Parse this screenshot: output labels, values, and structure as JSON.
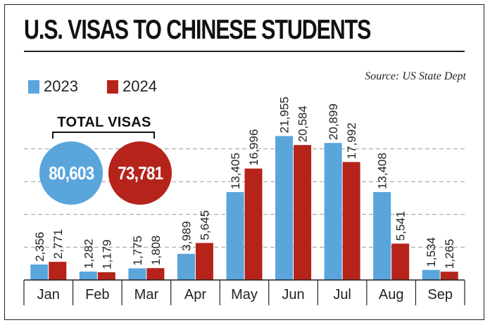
{
  "title": "U.S. VISAS TO CHINESE STUDENTS",
  "source": "Source: US State Dept",
  "legend": [
    {
      "label": "2023",
      "color": "#5aa5dc"
    },
    {
      "label": "2024",
      "color": "#b5231a"
    }
  ],
  "totals": {
    "heading": "TOTAL VISAS",
    "items": [
      {
        "year": "2023",
        "value": "80,603",
        "color": "#5aa5dc"
      },
      {
        "year": "2024",
        "value": "73,781",
        "color": "#b5231a"
      }
    ]
  },
  "chart_data": {
    "type": "bar",
    "title": "U.S. VISAS TO CHINESE STUDENTS",
    "categories": [
      "Jan",
      "Feb",
      "Mar",
      "Apr",
      "May",
      "Jun",
      "Jul",
      "Aug",
      "Sep"
    ],
    "series": [
      {
        "name": "2023",
        "color": "#5aa5dc",
        "values": [
          2356,
          1282,
          1775,
          3989,
          13405,
          21955,
          20899,
          13408,
          1534
        ],
        "labels": [
          "2,356",
          "1,282",
          "1,775",
          "3,989",
          "13,405",
          "21,955",
          "20,899",
          "13,408",
          "1,534"
        ]
      },
      {
        "name": "2024",
        "color": "#b5231a",
        "values": [
          2771,
          1179,
          1808,
          5645,
          16996,
          20584,
          17992,
          5541,
          1265
        ],
        "labels": [
          "2,771",
          "1,179",
          "1,808",
          "5,645",
          "16,996",
          "20,584",
          "17,992",
          "5,541",
          "1,265"
        ]
      }
    ],
    "ylim": [
      0,
      25000
    ],
    "grid": "dashed horizontal",
    "xlabel": "",
    "ylabel": ""
  }
}
